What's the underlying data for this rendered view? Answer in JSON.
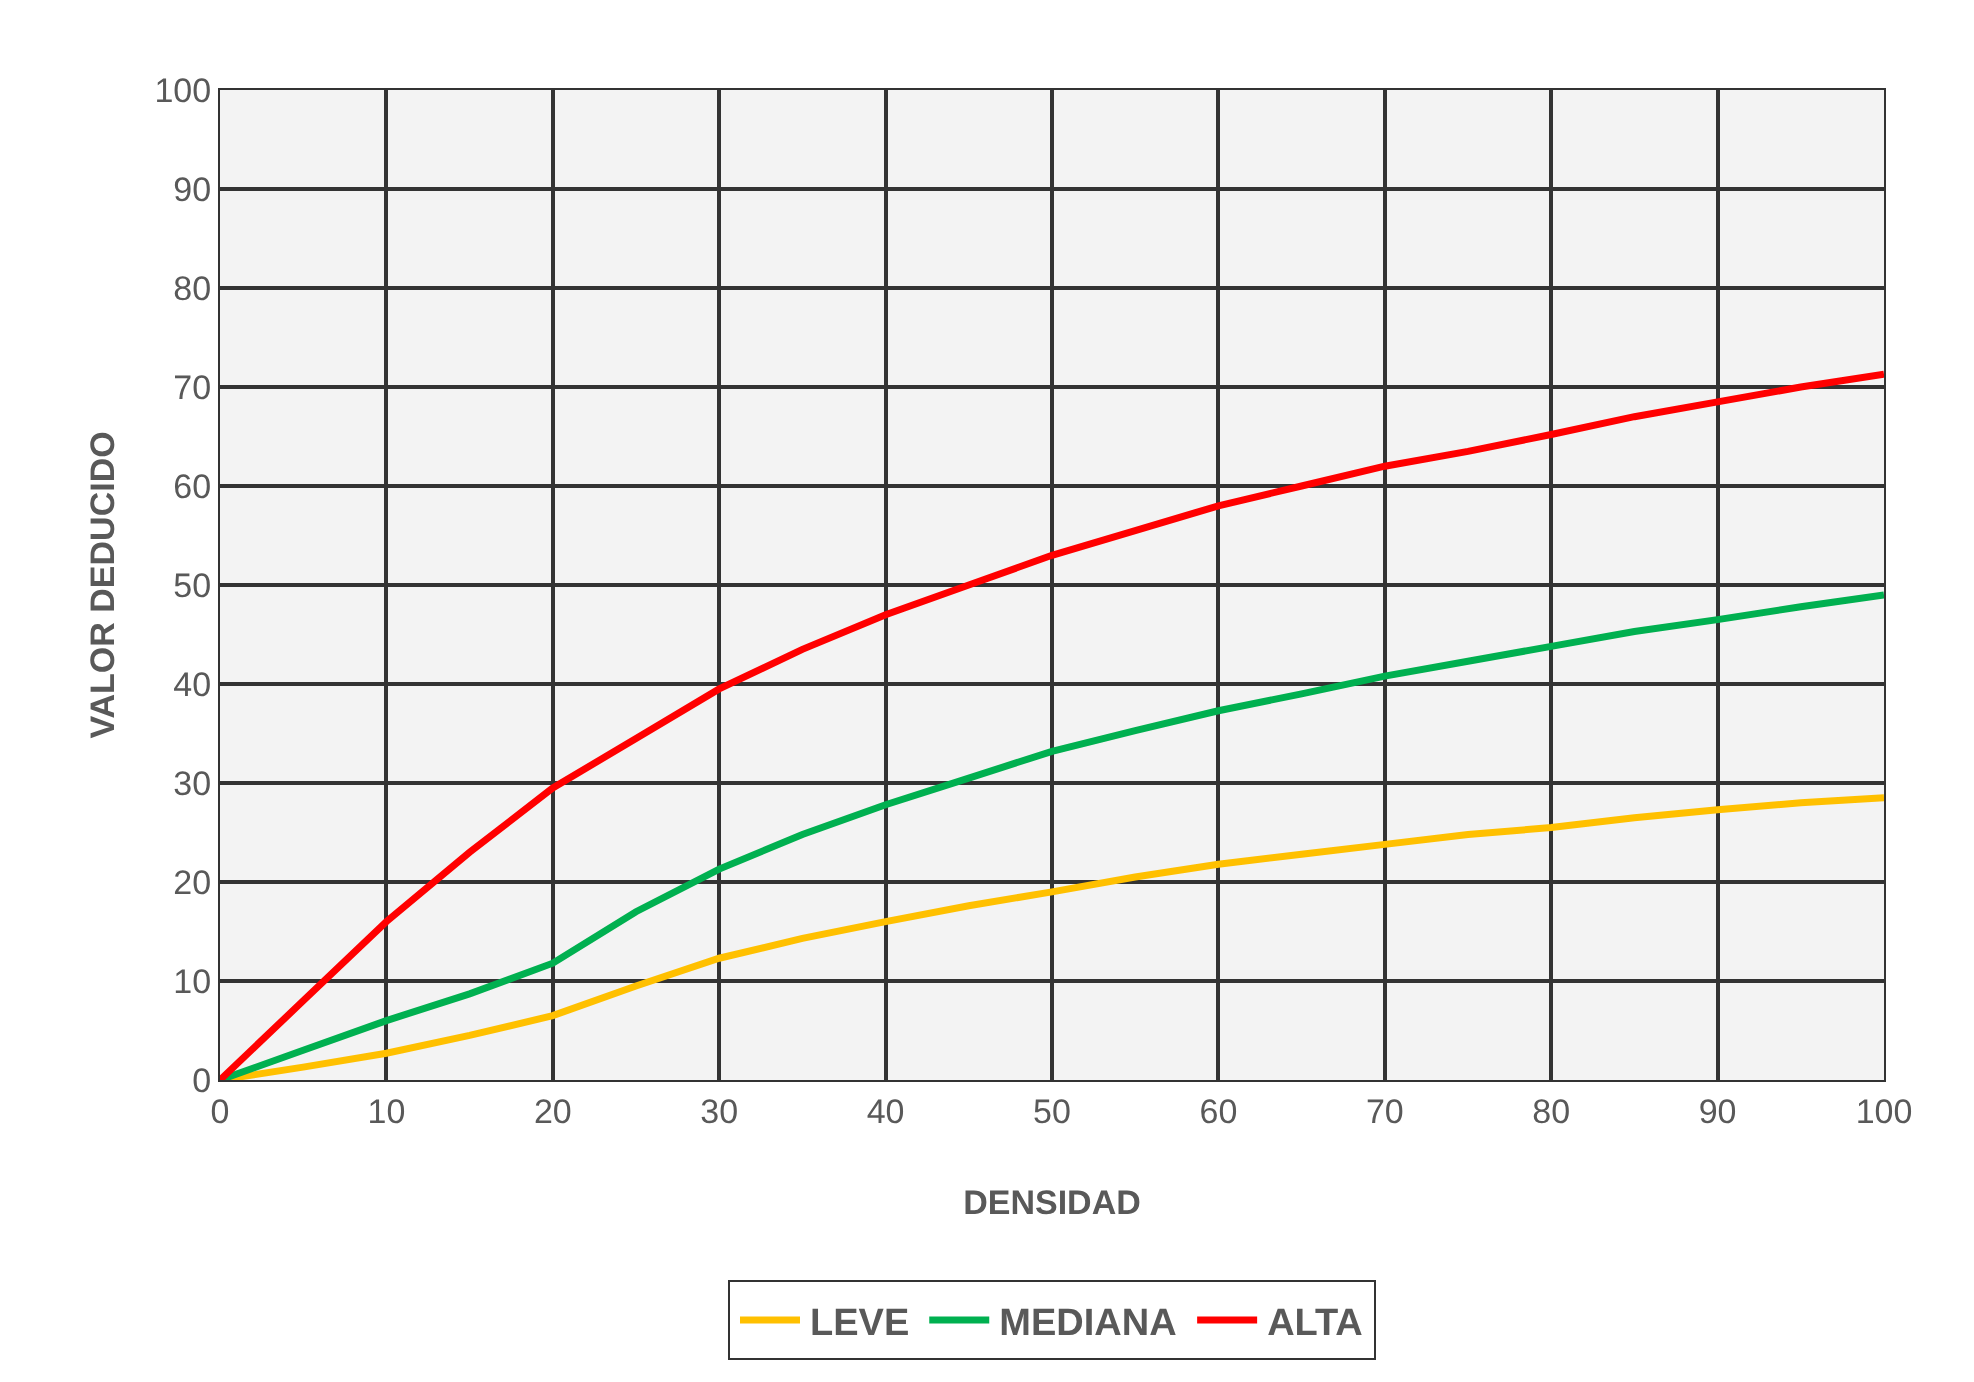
{
  "chart_data": {
    "type": "line",
    "xlabel": "DENSIDAD",
    "ylabel": "VALOR DEDUCIDO",
    "x": [
      0,
      5,
      10,
      15,
      20,
      25,
      30,
      35,
      40,
      45,
      50,
      55,
      60,
      65,
      70,
      75,
      80,
      85,
      90,
      95,
      100
    ],
    "series": [
      {
        "name": "LEVE",
        "color": "#ffc000",
        "values": [
          0,
          1.3,
          2.7,
          4.5,
          6.5,
          9.5,
          12.3,
          14.3,
          16,
          17.6,
          19,
          20.5,
          21.8,
          22.8,
          23.8,
          24.8,
          25.5,
          26.5,
          27.3,
          28,
          28.5
        ]
      },
      {
        "name": "MEDIANA",
        "color": "#00b050",
        "values": [
          0,
          3,
          6,
          8.7,
          11.8,
          17,
          21.3,
          24.8,
          27.8,
          30.5,
          33.2,
          35.3,
          37.3,
          39,
          40.8,
          42.3,
          43.8,
          45.3,
          46.5,
          47.8,
          49
        ]
      },
      {
        "name": "ALTA",
        "color": "#ff0000",
        "values": [
          0,
          8,
          16,
          23,
          29.5,
          34.5,
          39.5,
          43.5,
          47,
          50,
          53,
          55.5,
          58,
          60,
          62,
          63.5,
          65.2,
          67,
          68.5,
          70,
          71.3
        ]
      }
    ],
    "xlim": [
      0,
      100
    ],
    "xticks": [
      0,
      10,
      20,
      30,
      40,
      50,
      60,
      70,
      80,
      90,
      100
    ],
    "ylim": [
      0,
      100
    ],
    "yticks": [
      0,
      10,
      20,
      30,
      40,
      50,
      60,
      70,
      80,
      90,
      100
    ],
    "grid": true,
    "legend": "bottom",
    "marker": "none",
    "line_style": "solid"
  }
}
